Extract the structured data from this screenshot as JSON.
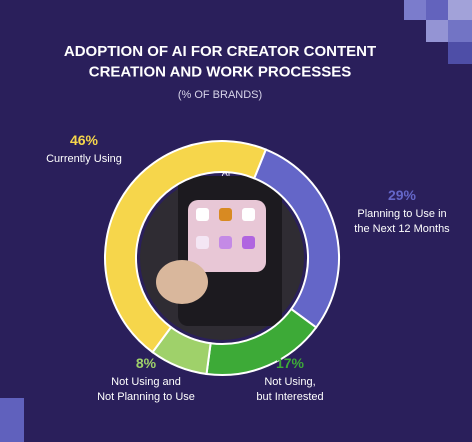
{
  "chart_data": {
    "type": "donut",
    "title": "ADOPTION OF AI FOR CREATOR CONTENT\nCREATION AND WORK PROCESSES",
    "subtitle": "(% OF BRANDS)",
    "center_label": "AI",
    "categories": [
      "Planning to Use in\nthe Next 12 Months",
      "Not Using,\nbut Interested",
      "Not Using and\nNot Planning to Use",
      "Currently Using"
    ],
    "values": [
      29,
      17,
      8,
      46
    ],
    "value_labels": [
      "29%",
      "17%",
      "8%",
      "46%"
    ],
    "colors": [
      "#6466c8",
      "#3daa37",
      "#9fd16a",
      "#f6d64b"
    ]
  }
}
